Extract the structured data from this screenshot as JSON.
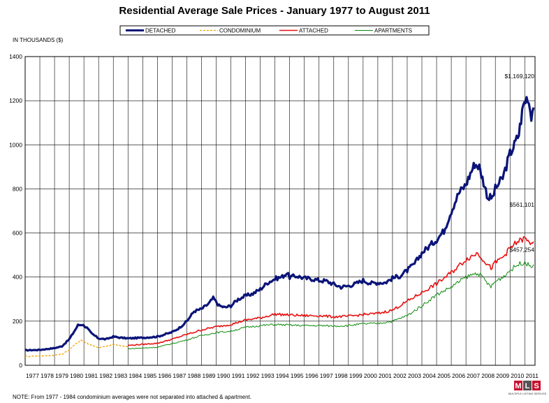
{
  "chart_data": {
    "type": "line",
    "title": "Residential Average Sale Prices  -  January 1977 to August 2011",
    "ylabel": "IN THOUSANDS ($)",
    "xlabel": "",
    "ylim": [
      0,
      1400
    ],
    "yticks": [
      0,
      200,
      400,
      600,
      800,
      1000,
      1200,
      1400
    ],
    "xlim": [
      1977.0,
      2011.7
    ],
    "x_tick_labels": [
      "1977",
      "1978",
      "1979",
      "1980",
      "1981",
      "1982",
      "1983",
      "1984",
      "1985",
      "1986",
      "1987",
      "1988",
      "1989",
      "1990",
      "1991",
      "1992",
      "1993",
      "1994",
      "1995",
      "1996",
      "1997",
      "1998",
      "1999",
      "2000",
      "2001",
      "2002",
      "2003",
      "2004",
      "2005",
      "2006",
      "2007",
      "2008",
      "2009",
      "2010",
      "2011"
    ],
    "grid": true,
    "legend_position": "top-center",
    "series": [
      {
        "name": "DETACHED",
        "color": "#0a1478",
        "style": "solid-thick",
        "points": [
          [
            1977.0,
            68
          ],
          [
            1978.0,
            70
          ],
          [
            1979.0,
            78
          ],
          [
            1979.5,
            86
          ],
          [
            1980.0,
            118
          ],
          [
            1980.4,
            160
          ],
          [
            1980.6,
            182
          ],
          [
            1980.9,
            185
          ],
          [
            1981.2,
            170
          ],
          [
            1981.5,
            145
          ],
          [
            1982.0,
            122
          ],
          [
            1982.5,
            118
          ],
          [
            1983.0,
            130
          ],
          [
            1983.5,
            125
          ],
          [
            1984.0,
            122
          ],
          [
            1985.0,
            125
          ],
          [
            1986.0,
            130
          ],
          [
            1987.0,
            150
          ],
          [
            1987.5,
            170
          ],
          [
            1988.0,
            200
          ],
          [
            1988.5,
            245
          ],
          [
            1989.0,
            255
          ],
          [
            1989.5,
            280
          ],
          [
            1989.8,
            305
          ],
          [
            1990.2,
            270
          ],
          [
            1990.6,
            262
          ],
          [
            1991.0,
            270
          ],
          [
            1991.5,
            300
          ],
          [
            1992.0,
            315
          ],
          [
            1992.5,
            325
          ],
          [
            1993.0,
            345
          ],
          [
            1993.5,
            375
          ],
          [
            1994.0,
            392
          ],
          [
            1994.5,
            402
          ],
          [
            1994.8,
            418
          ],
          [
            1995.0,
            400
          ],
          [
            1995.5,
            405
          ],
          [
            1996.0,
            395
          ],
          [
            1996.5,
            392
          ],
          [
            1997.0,
            385
          ],
          [
            1997.5,
            382
          ],
          [
            1998.0,
            368
          ],
          [
            1998.5,
            355
          ],
          [
            1999.0,
            360
          ],
          [
            1999.5,
            370
          ],
          [
            2000.0,
            385
          ],
          [
            2000.5,
            372
          ],
          [
            2001.0,
            375
          ],
          [
            2001.5,
            375
          ],
          [
            2002.0,
            395
          ],
          [
            2002.5,
            405
          ],
          [
            2003.0,
            430
          ],
          [
            2003.5,
            460
          ],
          [
            2004.0,
            510
          ],
          [
            2004.5,
            540
          ],
          [
            2005.0,
            570
          ],
          [
            2005.5,
            610
          ],
          [
            2006.0,
            700
          ],
          [
            2006.5,
            780
          ],
          [
            2007.0,
            820
          ],
          [
            2007.3,
            870
          ],
          [
            2007.6,
            915
          ],
          [
            2007.9,
            900
          ],
          [
            2008.2,
            830
          ],
          [
            2008.5,
            760
          ],
          [
            2008.8,
            760
          ],
          [
            2009.0,
            800
          ],
          [
            2009.5,
            850
          ],
          [
            2010.0,
            960
          ],
          [
            2010.3,
            1000
          ],
          [
            2010.6,
            1050
          ],
          [
            2010.9,
            1180
          ],
          [
            2011.2,
            1222
          ],
          [
            2011.45,
            1135
          ],
          [
            2011.6,
            1169
          ]
        ]
      },
      {
        "name": "CONDOMINIUM",
        "color": "#f0a000",
        "style": "dashed",
        "points": [
          [
            1977.0,
            40
          ],
          [
            1978.0,
            42
          ],
          [
            1979.0,
            46
          ],
          [
            1979.5,
            50
          ],
          [
            1980.0,
            70
          ],
          [
            1980.5,
            100
          ],
          [
            1980.8,
            115
          ],
          [
            1981.2,
            100
          ],
          [
            1981.6,
            90
          ],
          [
            1982.0,
            80
          ],
          [
            1982.5,
            85
          ],
          [
            1983.0,
            95
          ],
          [
            1983.5,
            88
          ],
          [
            1984.0,
            85
          ]
        ]
      },
      {
        "name": "ATTACHED",
        "color": "#e81010",
        "style": "solid",
        "points": [
          [
            1984.0,
            90
          ],
          [
            1985.0,
            95
          ],
          [
            1986.0,
            100
          ],
          [
            1987.0,
            118
          ],
          [
            1988.0,
            140
          ],
          [
            1989.0,
            160
          ],
          [
            1990.0,
            175
          ],
          [
            1991.0,
            185
          ],
          [
            1992.0,
            205
          ],
          [
            1993.0,
            215
          ],
          [
            1994.0,
            232
          ],
          [
            1995.0,
            228
          ],
          [
            1996.0,
            225
          ],
          [
            1997.0,
            225
          ],
          [
            1998.0,
            220
          ],
          [
            1999.0,
            222
          ],
          [
            2000.0,
            230
          ],
          [
            2001.0,
            235
          ],
          [
            2002.0,
            250
          ],
          [
            2003.0,
            290
          ],
          [
            2004.0,
            330
          ],
          [
            2005.0,
            370
          ],
          [
            2006.0,
            420
          ],
          [
            2007.0,
            480
          ],
          [
            2007.8,
            510
          ],
          [
            2008.3,
            470
          ],
          [
            2008.7,
            440
          ],
          [
            2009.0,
            465
          ],
          [
            2009.5,
            490
          ],
          [
            2010.0,
            530
          ],
          [
            2010.5,
            560
          ],
          [
            2011.0,
            575
          ],
          [
            2011.3,
            555
          ],
          [
            2011.6,
            561
          ]
        ]
      },
      {
        "name": "APARTMENTS",
        "color": "#0a8a0a",
        "style": "solid-thin",
        "points": [
          [
            1984.0,
            75
          ],
          [
            1985.0,
            78
          ],
          [
            1986.0,
            82
          ],
          [
            1987.0,
            98
          ],
          [
            1988.0,
            115
          ],
          [
            1989.0,
            135
          ],
          [
            1990.0,
            148
          ],
          [
            1991.0,
            155
          ],
          [
            1992.0,
            172
          ],
          [
            1993.0,
            180
          ],
          [
            1994.0,
            185
          ],
          [
            1995.0,
            182
          ],
          [
            1996.0,
            180
          ],
          [
            1997.0,
            180
          ],
          [
            1998.0,
            178
          ],
          [
            1999.0,
            180
          ],
          [
            2000.0,
            188
          ],
          [
            2001.0,
            190
          ],
          [
            2002.0,
            200
          ],
          [
            2003.0,
            225
          ],
          [
            2004.0,
            270
          ],
          [
            2005.0,
            320
          ],
          [
            2006.0,
            355
          ],
          [
            2007.0,
            400
          ],
          [
            2007.8,
            420
          ],
          [
            2008.3,
            385
          ],
          [
            2008.7,
            355
          ],
          [
            2009.0,
            380
          ],
          [
            2009.5,
            400
          ],
          [
            2010.0,
            430
          ],
          [
            2010.5,
            455
          ],
          [
            2011.0,
            470
          ],
          [
            2011.3,
            450
          ],
          [
            2011.6,
            457
          ]
        ]
      }
    ],
    "annotations": [
      {
        "text": "$1,169,120",
        "x": 2011.6,
        "y": 1169
      },
      {
        "text": "$561,101",
        "x": 2011.6,
        "y": 561
      },
      {
        "text": "$457,254",
        "x": 2011.6,
        "y": 457
      }
    ]
  },
  "note": "NOTE:  From 1977 - 1984 condominium averages were not separated into attached & apartment.",
  "logo": {
    "letters": [
      "M",
      "L",
      "S"
    ],
    "tagline": "MULTIPLE LISTING SERVICE",
    "colors": [
      "#c8102e",
      "#555555",
      "#c8102e"
    ]
  }
}
